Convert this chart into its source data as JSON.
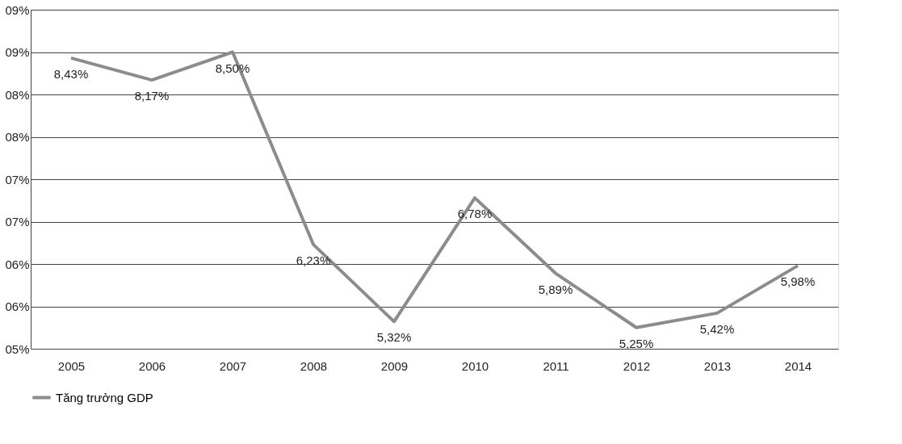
{
  "chart_data": {
    "type": "line",
    "categories": [
      "2005",
      "2006",
      "2007",
      "2008",
      "2009",
      "2010",
      "2011",
      "2012",
      "2013",
      "2014"
    ],
    "series": [
      {
        "name": "Tăng trưởng GDP",
        "color": "#8c8c8c",
        "values": [
          8.43,
          8.17,
          8.5,
          6.23,
          5.32,
          6.78,
          5.89,
          5.25,
          5.42,
          5.98
        ]
      }
    ],
    "ylim": [
      5.0,
      9.0
    ],
    "yticks": [
      {
        "value": 5.0,
        "label": "05%"
      },
      {
        "value": 5.5,
        "label": "06%"
      },
      {
        "value": 6.0,
        "label": "06%"
      },
      {
        "value": 6.5,
        "label": "07%"
      },
      {
        "value": 7.0,
        "label": "07%"
      },
      {
        "value": 7.5,
        "label": "08%"
      },
      {
        "value": 8.0,
        "label": "08%"
      },
      {
        "value": 8.5,
        "label": "09%"
      },
      {
        "value": 9.0,
        "label": "09%"
      }
    ],
    "value_labels": [
      "8,43%",
      "8,17%",
      "8,50%",
      "6,23%",
      "5,32%",
      "6,78%",
      "5,89%",
      "5,25%",
      "5,42%",
      "5,98%"
    ],
    "grid": "y",
    "legend": "bottom",
    "marker": "none",
    "line_style": "solid"
  }
}
